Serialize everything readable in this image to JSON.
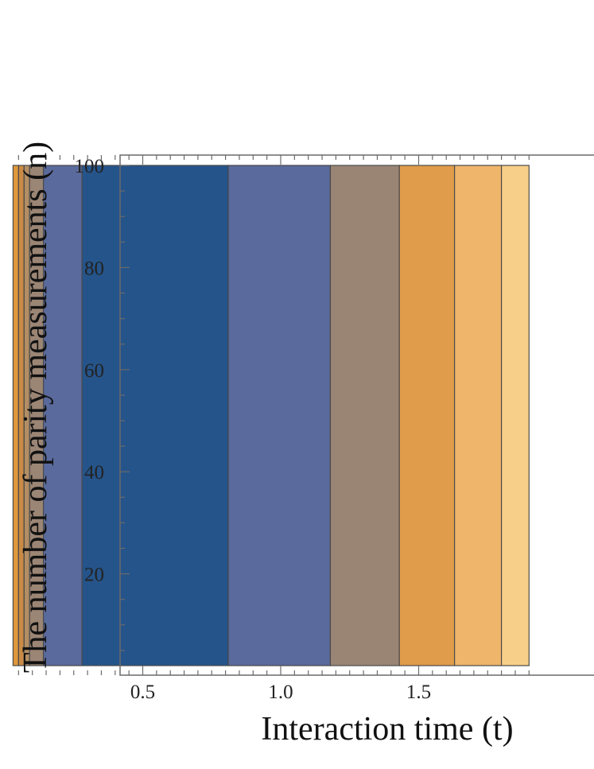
{
  "chart_data": {
    "type": "heatmap",
    "title": "",
    "xlabel": "Interaction time (t)",
    "ylabel": "The number of parity measurements (n)",
    "xlim": [
      0,
      1.9
    ],
    "ylim": [
      0,
      100
    ],
    "data_y_range": [
      1,
      100
    ],
    "grid": false,
    "x_ticks": [
      0.5,
      1.0,
      1.5
    ],
    "x_tick_labels": [
      "0.5",
      "1.0",
      "1.5"
    ],
    "y_ticks": [
      20,
      40,
      60,
      80,
      100
    ],
    "y_tick_labels": [
      "20",
      "40",
      "60",
      "80",
      "100"
    ],
    "bands": [
      {
        "x0": 0.03,
        "x1": 0.05,
        "color": "#e0983a"
      },
      {
        "x0": 0.05,
        "x1": 0.07,
        "color": "#c98a44"
      },
      {
        "x0": 0.07,
        "x1": 0.09,
        "color": "#b38e64"
      },
      {
        "x0": 0.09,
        "x1": 0.14,
        "color": "#9b8574"
      },
      {
        "x0": 0.14,
        "x1": 0.28,
        "color": "#5a6a9c"
      },
      {
        "x0": 0.28,
        "x1": 0.81,
        "color": "#25548a"
      },
      {
        "x0": 0.81,
        "x1": 1.18,
        "color": "#5a6a9c"
      },
      {
        "x0": 1.18,
        "x1": 1.43,
        "color": "#9a8574"
      },
      {
        "x0": 1.43,
        "x1": 1.63,
        "color": "#e09b4b"
      },
      {
        "x0": 1.63,
        "x1": 1.8,
        "color": "#efb56b"
      },
      {
        "x0": 1.8,
        "x1": 1.9,
        "color": "#f8cf88"
      }
    ]
  }
}
